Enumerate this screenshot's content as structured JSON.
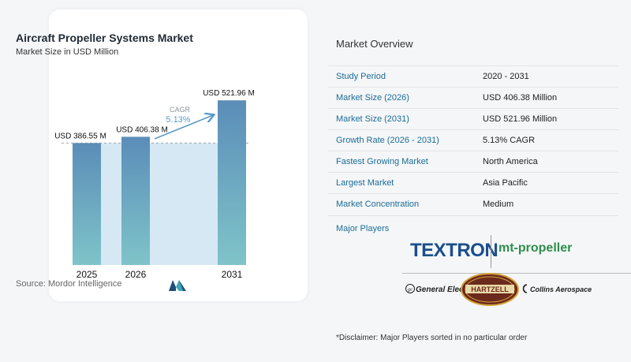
{
  "chart_data": {
    "type": "bar",
    "title": "Aircraft Propeller Systems Market",
    "subtitle": "Market Size in USD Million",
    "categories": [
      "2025",
      "2026",
      "2031"
    ],
    "values": [
      386.55,
      406.38,
      521.96
    ],
    "value_labels": [
      "USD 386.55 M",
      "USD 406.38 M",
      "USD 521.96 M"
    ],
    "cagr_label": "CAGR",
    "cagr_value": "5.13%",
    "colors": {
      "bar_top": "#5b8db8",
      "bar_bottom": "#7fc4c9",
      "background_band": "#d6e8f4",
      "arrow": "#5b9bc8",
      "cagr_text": "#5b9bc8"
    },
    "ylim": [
      0,
      540
    ],
    "grid": false,
    "source": "Source:  Mordor Intelligence"
  },
  "overview": {
    "title": "Market Overview",
    "rows": [
      {
        "key": "Study Period",
        "value": "2020 - 2031"
      },
      {
        "key": "Market Size (2026)",
        "value": "USD 406.38 Million"
      },
      {
        "key": "Market Size (2031)",
        "value": "USD 521.96 Million"
      },
      {
        "key": "Growth Rate (2026 - 2031)",
        "value": "5.13% CAGR"
      },
      {
        "key": "Fastest Growing Market",
        "value": "North America"
      },
      {
        "key": "Largest Market",
        "value": "Asia Pacific"
      },
      {
        "key": "Market Concentration",
        "value": "Medium"
      }
    ],
    "players_label": "Major Players",
    "players": {
      "textron": "TEXTRON",
      "mt": "mt-propeller",
      "ge": "General Electric",
      "hartzell": "HARTZELL",
      "collins": "Collins Aerospace"
    },
    "disclaimer": "*Disclaimer: Major Players sorted in no particular order"
  },
  "colors": {
    "key_text": "#1a6d96",
    "textron": "#1b4f8a",
    "mt": "#2e8f4b"
  }
}
